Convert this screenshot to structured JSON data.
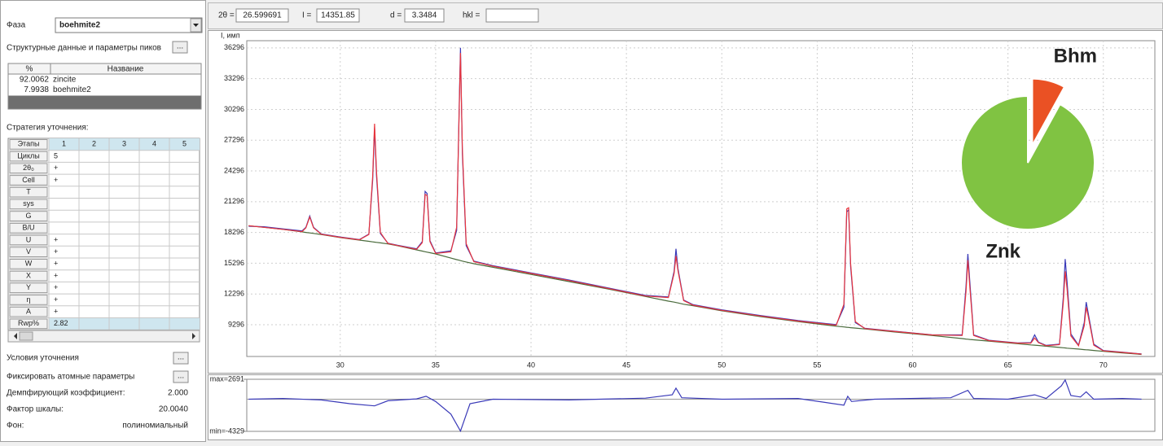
{
  "panel": {
    "phase_label": "Фаза",
    "phase_value": "boehmite2",
    "structure_button_label": "Структурные данные и параметры пиков",
    "button_text": "...",
    "phase_table": {
      "header": [
        "%",
        "Название"
      ],
      "rows": [
        [
          "92.0062",
          "zincite"
        ],
        [
          "7.9938",
          "boehmite2"
        ]
      ]
    },
    "strategy_label": "Стратегия уточнения:",
    "strategy_table": {
      "header": [
        "Этапы",
        "1",
        "2",
        "3",
        "4",
        "5"
      ],
      "rows": [
        [
          "Циклы",
          "5"
        ],
        [
          "2θ₀",
          "+"
        ],
        [
          "Cell",
          "+"
        ],
        [
          "T"
        ],
        [
          "sys"
        ],
        [
          "G"
        ],
        [
          "B/U"
        ],
        [
          "U",
          "+"
        ],
        [
          "V",
          "+"
        ],
        [
          "W",
          "+"
        ],
        [
          "X",
          "+"
        ],
        [
          "Y",
          "+"
        ],
        [
          "η",
          "+"
        ],
        [
          "A",
          "+"
        ],
        [
          "Rwp%",
          "2.82"
        ]
      ]
    },
    "conditions_label": "Условия уточнения",
    "fix_atomic_label": "Фиксировать атомные параметры",
    "damping_label": "Демпфирующий коэффициент:",
    "damping_value": "2.000",
    "scale_label": "Фактор шкалы:",
    "scale_value": "20.0040",
    "background_label": "Фон:",
    "background_value": "полиномиальный"
  },
  "toolbar": {
    "two_theta_label": "2θ =",
    "two_theta_value": "26.599691",
    "intensity_label": "I =",
    "intensity_value": "14351.85",
    "d_label": "d =",
    "d_value": "3.3484",
    "hkl_label": "hkl ="
  },
  "chart_data": [
    {
      "type": "line",
      "y_label": "I, имп",
      "grid": true,
      "xlim": [
        25.1,
        72.7
      ],
      "ylim": [
        6200,
        37000
      ],
      "xticks": [
        30,
        35,
        40,
        45,
        50,
        55,
        60,
        65,
        70
      ],
      "yticks": [
        9296,
        12296,
        15296,
        18296,
        21296,
        24296,
        27296,
        30296,
        33296,
        36296
      ],
      "x": [
        25.2,
        26,
        27,
        28,
        28.2,
        28.4,
        28.6,
        29,
        30,
        31,
        31.5,
        31.7,
        31.8,
        31.9,
        32.1,
        32.5,
        33,
        34,
        34.3,
        34.45,
        34.55,
        34.7,
        35,
        35.8,
        36.1,
        36.25,
        36.3,
        36.4,
        36.6,
        37,
        38,
        40,
        42,
        44,
        46,
        47.2,
        47.5,
        47.6,
        47.7,
        48,
        48.5,
        50,
        52,
        54,
        56,
        56.4,
        56.55,
        56.65,
        56.75,
        57,
        57.5,
        59,
        61,
        62.6,
        62.8,
        62.9,
        63,
        63.2,
        64,
        65.5,
        66.2,
        66.4,
        66.6,
        67,
        67.7,
        67.9,
        68,
        68.1,
        68.3,
        68.7,
        69,
        69.1,
        69.2,
        69.5,
        70,
        71,
        72
      ],
      "series": [
        {
          "color": "#4a6b3c",
          "values": [
            18950,
            18800,
            18600,
            18350,
            18300,
            18250,
            18200,
            18100,
            17800,
            17550,
            17430,
            17380,
            17350,
            17330,
            17280,
            17180,
            17000,
            16600,
            16480,
            16420,
            16380,
            16320,
            16200,
            15800,
            15650,
            15580,
            15550,
            15500,
            15420,
            15250,
            14900,
            14200,
            13500,
            12800,
            12050,
            11600,
            11500,
            11460,
            11420,
            11300,
            11150,
            10650,
            10100,
            9600,
            9150,
            9080,
            9050,
            9030,
            9010,
            8970,
            8880,
            8600,
            8250,
            7950,
            7900,
            7880,
            7860,
            7830,
            7700,
            7450,
            7330,
            7300,
            7270,
            7200,
            7080,
            7050,
            7030,
            7010,
            6980,
            6920,
            6870,
            6850,
            6840,
            6790,
            6700,
            6550,
            6400
          ]
        },
        {
          "color": "#3a3ab8",
          "values": [
            18900,
            18850,
            18650,
            18450,
            18800,
            19900,
            18800,
            18150,
            17850,
            17600,
            18130,
            23400,
            28500,
            23800,
            18200,
            17250,
            17050,
            16700,
            17400,
            22300,
            22100,
            17500,
            16300,
            16500,
            18500,
            32000,
            36300,
            26000,
            17000,
            15500,
            15050,
            14350,
            13650,
            12900,
            12150,
            12000,
            14500,
            16700,
            14800,
            11700,
            11250,
            10750,
            10200,
            9700,
            9300,
            11000,
            20300,
            20500,
            15000,
            9500,
            8950,
            8680,
            8320,
            8300,
            13000,
            16200,
            13500,
            8300,
            7780,
            7520,
            7550,
            8300,
            7600,
            7280,
            7400,
            12000,
            15700,
            13500,
            8400,
            7300,
            9500,
            11500,
            10500,
            7400,
            6780,
            6620,
            6450
          ]
        },
        {
          "color": "#e8343c",
          "values": [
            18950,
            18800,
            18600,
            18380,
            18750,
            19800,
            18750,
            18120,
            17820,
            17580,
            18100,
            23800,
            28900,
            24200,
            18300,
            17230,
            17020,
            16650,
            17300,
            22000,
            21900,
            17400,
            16250,
            16400,
            18800,
            31500,
            35800,
            26500,
            17200,
            15450,
            15000,
            14300,
            13600,
            12850,
            12100,
            11950,
            14300,
            16000,
            14600,
            11650,
            11200,
            10700,
            10150,
            9650,
            9250,
            11300,
            20600,
            20700,
            15300,
            9600,
            8920,
            8650,
            8300,
            8250,
            12500,
            15600,
            13000,
            8250,
            7750,
            7500,
            7500,
            8000,
            7550,
            7250,
            7350,
            11500,
            14500,
            12800,
            8200,
            7250,
            9200,
            11000,
            10200,
            7300,
            6750,
            6600,
            6430
          ]
        }
      ]
    },
    {
      "type": "line",
      "xlim": [
        25.1,
        72.7
      ],
      "ylim": [
        -4329,
        2691
      ],
      "yticks": [
        {
          "value": 2691,
          "label": "max=2691"
        },
        {
          "value": -4329,
          "label": "min=-4329"
        }
      ],
      "x": [
        25.2,
        27,
        29,
        30.5,
        31.8,
        32.5,
        34,
        34.5,
        35,
        35.8,
        36.3,
        36.8,
        38,
        42,
        46,
        47.4,
        47.6,
        47.9,
        50,
        54,
        56.4,
        56.6,
        56.8,
        58,
        62,
        62.9,
        63.2,
        65,
        66.4,
        67,
        67.8,
        68,
        68.3,
        68.8,
        69.1,
        69.5,
        71,
        72
      ],
      "series": [
        {
          "color": "#3a3ab8",
          "values": [
            0,
            100,
            -100,
            -600,
            -900,
            -200,
            50,
            400,
            -300,
            -2000,
            -4300,
            -600,
            0,
            -100,
            150,
            600,
            1500,
            200,
            0,
            100,
            -800,
            400,
            -300,
            0,
            200,
            1200,
            100,
            0,
            600,
            100,
            1800,
            2600,
            500,
            300,
            1000,
            0,
            100,
            0
          ]
        }
      ]
    },
    {
      "type": "pie",
      "categories": [
        "Bhm",
        "Znk"
      ],
      "values": [
        7.9938,
        92.0062
      ],
      "colors": [
        "#ea5124",
        "#80c342"
      ]
    }
  ]
}
